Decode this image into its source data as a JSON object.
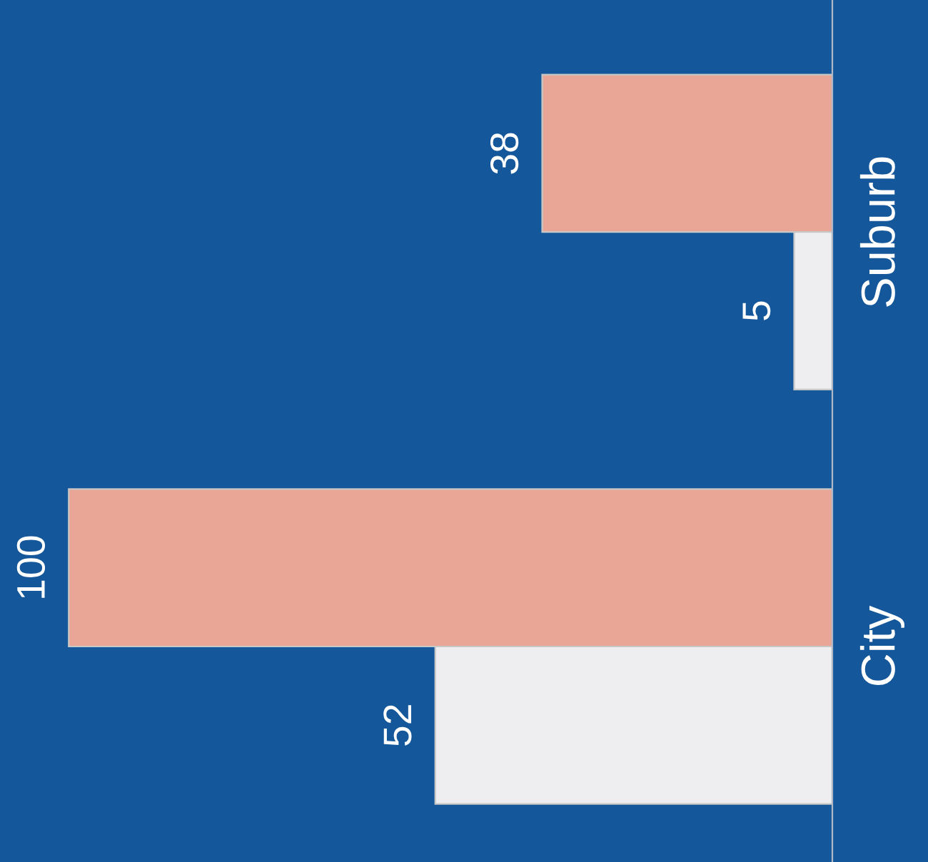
{
  "chart_data": {
    "type": "bar",
    "orientation": "horizontal",
    "categories": [
      "Suburb",
      "City"
    ],
    "series": [
      {
        "color": "#e9a595",
        "values": [
          38,
          100
        ]
      },
      {
        "color": "#eeeef0",
        "values": [
          5,
          52
        ]
      }
    ],
    "xlim": [
      109,
      0
    ],
    "data_labels": true,
    "grid": false,
    "legend": false,
    "tick_labels": "y"
  }
}
